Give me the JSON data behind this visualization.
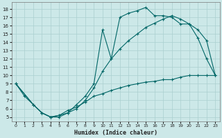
{
  "xlabel": "Humidex (Indice chaleur)",
  "bg_color": "#cce8e8",
  "line_color": "#006666",
  "grid_color": "#aacfcf",
  "xlim": [
    -0.5,
    23.5
  ],
  "ylim": [
    4.5,
    18.8
  ],
  "xticks": [
    0,
    1,
    2,
    3,
    4,
    5,
    6,
    7,
    8,
    9,
    10,
    11,
    12,
    13,
    14,
    15,
    16,
    17,
    18,
    19,
    20,
    21,
    22,
    23
  ],
  "yticks": [
    5,
    6,
    7,
    8,
    9,
    10,
    11,
    12,
    13,
    14,
    15,
    16,
    17,
    18
  ],
  "line1_x": [
    0,
    1,
    2,
    3,
    4,
    5,
    6,
    7,
    8,
    9,
    10,
    11,
    12,
    13,
    14,
    15,
    16,
    17,
    18,
    19,
    20,
    21,
    22,
    23
  ],
  "line1_y": [
    9.0,
    7.5,
    6.5,
    5.5,
    5.0,
    5.0,
    5.5,
    6.5,
    7.5,
    9.0,
    15.5,
    12.0,
    17.0,
    17.5,
    17.8,
    18.2,
    17.2,
    17.2,
    17.0,
    16.2,
    16.2,
    14.5,
    12.0,
    10.0
  ],
  "line2_x": [
    0,
    2,
    3,
    4,
    5,
    6,
    7,
    8,
    9,
    10,
    11,
    12,
    13,
    14,
    15,
    16,
    17,
    18,
    19,
    20,
    21,
    22,
    23
  ],
  "line2_y": [
    9.0,
    6.5,
    5.5,
    5.0,
    5.2,
    5.5,
    6.0,
    7.0,
    8.5,
    10.5,
    12.0,
    13.2,
    14.2,
    15.0,
    15.8,
    16.3,
    16.8,
    17.2,
    16.8,
    16.2,
    15.5,
    14.2,
    10.0
  ],
  "line3_x": [
    0,
    2,
    3,
    4,
    5,
    6,
    7,
    8,
    9,
    10,
    11,
    12,
    13,
    14,
    15,
    16,
    17,
    18,
    19,
    20,
    21,
    22,
    23
  ],
  "line3_y": [
    9.0,
    6.5,
    5.5,
    5.0,
    5.2,
    5.8,
    6.2,
    6.8,
    7.5,
    7.8,
    8.2,
    8.5,
    8.8,
    9.0,
    9.2,
    9.3,
    9.5,
    9.5,
    9.8,
    10.0,
    10.0,
    10.0,
    10.0
  ]
}
